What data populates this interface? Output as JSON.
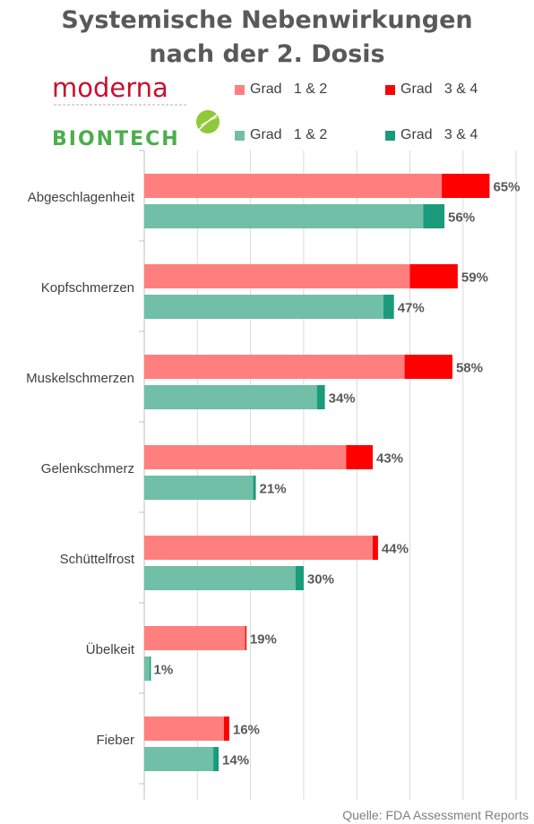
{
  "chart_data": {
    "type": "bar",
    "orientation": "horizontal",
    "stacked": true,
    "title": [
      "Systemische Nebenwirkungen",
      "nach der 2. Dosis"
    ],
    "categories": [
      "Abgeschlagenheit",
      "Kopfschmerzen",
      "Muskelschmerzen",
      "Gelenkschmerz",
      "Schüttelfrost",
      "Übelkeit",
      "Fieber"
    ],
    "groups": [
      {
        "name": "moderna",
        "colors": {
          "grade12": "#ff7f7f",
          "grade34": "#ff0000"
        },
        "grade12": [
          56,
          50,
          49,
          38,
          43,
          19,
          15
        ],
        "grade34": [
          9,
          9,
          9,
          5,
          1,
          0.2,
          1
        ],
        "totals": [
          "65%",
          "59%",
          "58%",
          "43%",
          "44%",
          "19%",
          "16%"
        ]
      },
      {
        "name": "BIONTECH",
        "colors": {
          "grade12": "#70bfa6",
          "grade34": "#1a9b7b"
        },
        "grade12": [
          52.5,
          45,
          32.5,
          20.5,
          28.5,
          1,
          13
        ],
        "grade34": [
          4,
          2,
          1.5,
          0.5,
          1.5,
          0.1,
          1
        ],
        "totals": [
          "56%",
          "47%",
          "34%",
          "21%",
          "30%",
          "1%",
          "14%"
        ]
      }
    ],
    "legend": {
      "moderna": [
        "Grad   1 & 2",
        "Grad   3 & 4"
      ],
      "biontech": [
        "Grad   1 & 2",
        "Grad   3 & 4"
      ]
    },
    "xlim": [
      0,
      70
    ],
    "grid": true,
    "legend_placement": "top"
  },
  "logos": {
    "moderna": "moderna",
    "biontech": "BIONTECH"
  },
  "source": "Quelle: FDA Assessment Reports"
}
